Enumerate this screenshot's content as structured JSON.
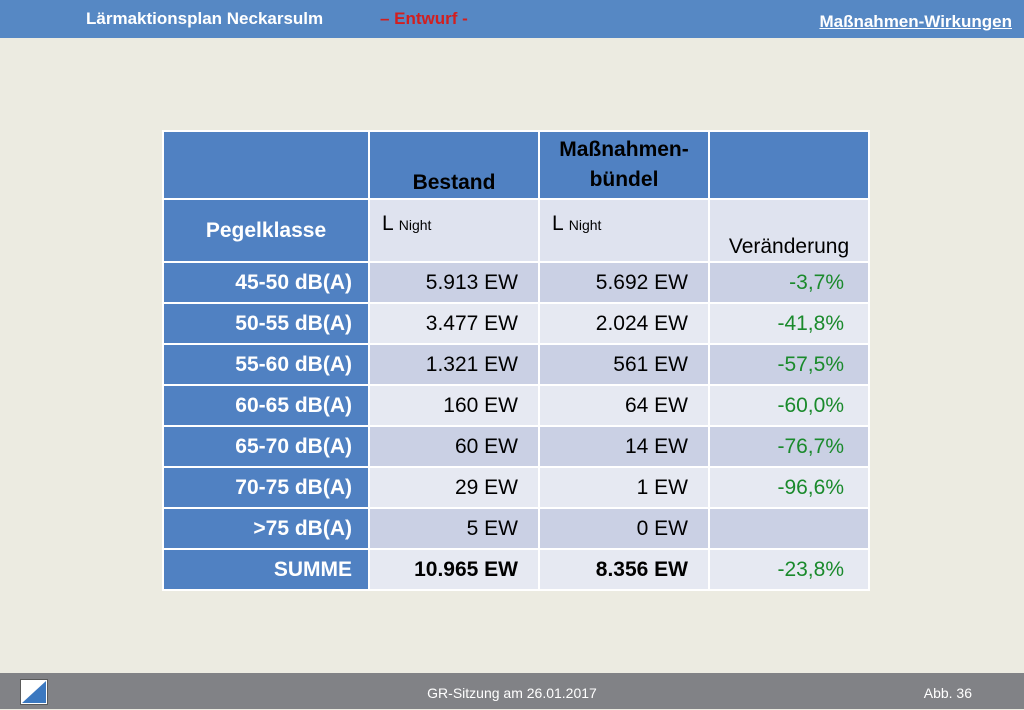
{
  "header": {
    "title": "Lärmaktionsplan Neckarsulm",
    "draft": "– Entwurf -",
    "section": "Maßnahmen-Wirkungen"
  },
  "table": {
    "col_bestand": "Bestand",
    "col_massnahmen_line1": "Maßnahmen-",
    "col_massnahmen_line2": "bündel",
    "row_pegelklasse": "Pegelklasse",
    "l_letter": "L",
    "l_sub": "Night",
    "col_veraenderung": "Veränderung",
    "rows": [
      {
        "label": "45-50 dB(A)",
        "bestand": "5.913 EW",
        "massnahmen": "5.692 EW",
        "change": "-3,7%"
      },
      {
        "label": "50-55 dB(A)",
        "bestand": "3.477 EW",
        "massnahmen": "2.024 EW",
        "change": "-41,8%"
      },
      {
        "label": "55-60 dB(A)",
        "bestand": "1.321 EW",
        "massnahmen": "561 EW",
        "change": "-57,5%"
      },
      {
        "label": "60-65 dB(A)",
        "bestand": "160 EW",
        "massnahmen": "64 EW",
        "change": "-60,0%"
      },
      {
        "label": "65-70 dB(A)",
        "bestand": "60 EW",
        "massnahmen": "14 EW",
        "change": "-76,7%"
      },
      {
        "label": "70-75 dB(A)",
        "bestand": "29 EW",
        "massnahmen": "1 EW",
        "change": "-96,6%"
      },
      {
        "label": ">75 dB(A)",
        "bestand": "5 EW",
        "massnahmen": "0 EW",
        "change": ""
      },
      {
        "label": "SUMME",
        "bestand": "10.965 EW",
        "massnahmen": "8.356 EW",
        "change": "-23,8%"
      }
    ]
  },
  "footer": {
    "center": "GR-Sitzung am 26.01.2017",
    "right": "Abb. 36",
    "logo_icon": "diagonal-logo-icon"
  },
  "colors": {
    "header_blue": "#5688c4",
    "table_blue": "#5081c2",
    "draft_red": "#d21f1f",
    "change_green": "#1a8a2c"
  }
}
